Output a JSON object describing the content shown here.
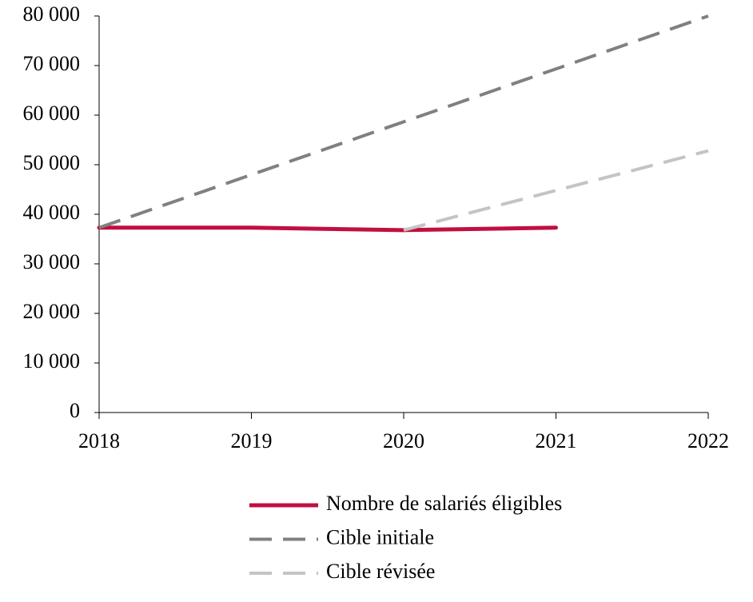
{
  "chart_data": {
    "type": "line",
    "xlim": [
      2018,
      2022
    ],
    "xticks": [
      2018,
      2019,
      2020,
      2021,
      2022
    ],
    "ylim": [
      0,
      80000
    ],
    "yticks": [
      0,
      {
        "value": 10000,
        "label": "10 000"
      },
      {
        "value": 20000,
        "label": "20 000"
      },
      {
        "value": 30000,
        "label": "30 000"
      },
      {
        "value": 40000,
        "label": "40 000"
      },
      {
        "value": 50000,
        "label": "50 000"
      },
      {
        "value": 60000,
        "label": "60 000"
      },
      {
        "value": 70000,
        "label": "70 000"
      },
      {
        "value": 80000,
        "label": "80 000"
      }
    ],
    "grid": false,
    "series": [
      {
        "name": "Nombre de salariés éligibles",
        "color": "#c0103f",
        "dashed": false,
        "x": [
          2018,
          2019,
          2020,
          2021
        ],
        "values": [
          37300,
          37300,
          36800,
          37300
        ]
      },
      {
        "name": "Cible initiale",
        "color": "#808080",
        "dashed": true,
        "x": [
          2018,
          2022
        ],
        "values": [
          37300,
          80000
        ]
      },
      {
        "name": "Cible révisée",
        "color": "#c4c4c4",
        "dashed": true,
        "x": [
          2020,
          2022
        ],
        "values": [
          36800,
          52800
        ]
      }
    ]
  }
}
